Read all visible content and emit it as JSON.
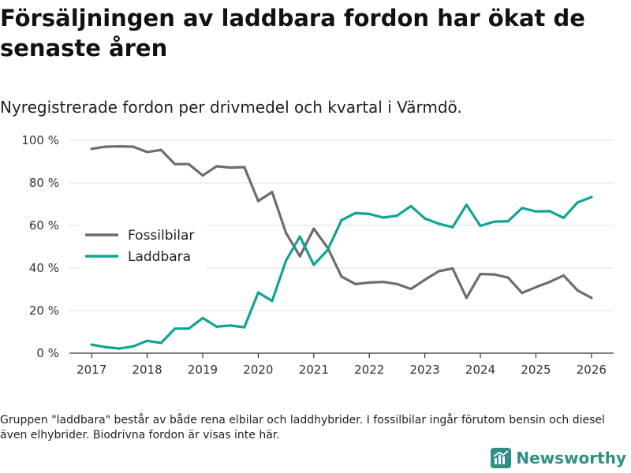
{
  "title": "Försäljningen av laddbara fordon har ökat de senaste åren",
  "subtitle": "Nyregistrerade fordon per drivmedel och kvartal i Värmdö.",
  "footnote": "Gruppen \"laddbara\" består av både rena elbilar och laddhybrider. I fossilbilar ingår förutom bensin och diesel även elhybrider. Biodrivna fordon är visas inte här.",
  "brand": {
    "name": "Newsworthy"
  },
  "colors": {
    "fossil": "#6d6c70",
    "laddbara": "#0ea496",
    "grid": "#dcdcdc",
    "axis": "#333333",
    "brand": "#2e8f86"
  },
  "chart_data": {
    "type": "line",
    "title": "Försäljningen av laddbara fordon har ökat de senaste åren",
    "subtitle": "Nyregistrerade fordon per drivmedel och kvartal i Värmdö.",
    "xlabel": "",
    "ylabel": "",
    "xlim": [
      2016.6,
      2026.4
    ],
    "ylim": [
      0,
      100
    ],
    "x_ticks": [
      2017,
      2018,
      2019,
      2020,
      2021,
      2022,
      2023,
      2024,
      2025,
      2026
    ],
    "y_ticks": [
      0,
      20,
      40,
      60,
      80,
      100
    ],
    "y_tick_labels": [
      "0 %",
      "20 %",
      "40 %",
      "60 %",
      "80 %",
      "100 %"
    ],
    "grid": true,
    "legend_position": "middle-left",
    "x": [
      2017.0,
      2017.25,
      2017.5,
      2017.75,
      2018.0,
      2018.25,
      2018.5,
      2018.75,
      2019.0,
      2019.25,
      2019.5,
      2019.75,
      2020.0,
      2020.25,
      2020.5,
      2020.75,
      2021.0,
      2021.25,
      2021.5,
      2021.75,
      2022.0,
      2022.25,
      2022.5,
      2022.75,
      2023.0,
      2023.25,
      2023.5,
      2023.75,
      2024.0,
      2024.25,
      2024.5,
      2024.75,
      2025.0,
      2025.25,
      2025.5,
      2025.75,
      2026.0
    ],
    "series": [
      {
        "name": "Fossilbilar",
        "color": "#6d6c70",
        "values": [
          96,
          97,
          97.2,
          97,
          94.5,
          95.5,
          88.8,
          88.8,
          83.5,
          87.8,
          87.2,
          87.4,
          71.5,
          75.7,
          56.5,
          45.5,
          58.5,
          49.5,
          36,
          32.5,
          33.2,
          33.5,
          32.5,
          30.2,
          34.5,
          38.5,
          39.8,
          26,
          37.2,
          37,
          35.5,
          28.3,
          31,
          33.5,
          36.5,
          29.5,
          26
        ]
      },
      {
        "name": "Laddbara",
        "color": "#0ea496",
        "values": [
          4,
          2.8,
          2.2,
          3.2,
          5.8,
          4.8,
          11.5,
          11.5,
          16.5,
          12.5,
          13,
          12.2,
          28.5,
          24.5,
          43.5,
          54.8,
          41.5,
          48.5,
          62.5,
          65.8,
          65.4,
          63.7,
          64.6,
          69.1,
          63.3,
          60.8,
          59.2,
          69.7,
          59.8,
          61.8,
          62,
          68.2,
          66.6,
          66.7,
          63.6,
          70.8,
          73.3
        ]
      }
    ]
  }
}
